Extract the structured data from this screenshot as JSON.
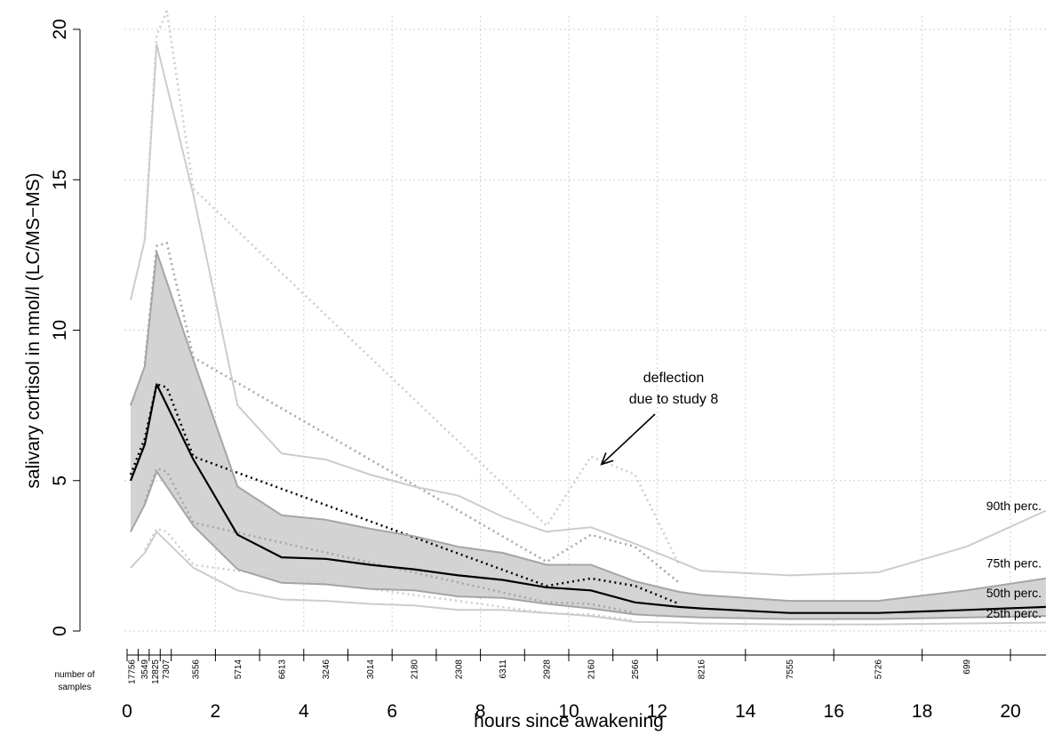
{
  "chart_data": {
    "type": "line",
    "xlabel": "hours since awakening",
    "ylabel": "salivary cortisol in nmol/l (LC/MS−MS)",
    "xlim": [
      0,
      20.8
    ],
    "ylim": [
      0,
      20
    ],
    "x_ticks": [
      0,
      2,
      4,
      6,
      8,
      10,
      12,
      14,
      16,
      18,
      20
    ],
    "y_ticks": [
      0,
      5,
      10,
      15,
      20
    ],
    "grid": true,
    "band": {
      "lower": "25th perc.",
      "upper": "75th perc.",
      "color": "#d3d3d3"
    },
    "series": [
      {
        "name": "90th perc.",
        "style": "solid",
        "color": "#cccccc",
        "x": [
          0.08,
          0.4,
          0.67,
          1.5,
          2.5,
          3.5,
          4.5,
          5.5,
          6.5,
          7.5,
          8.5,
          9.5,
          10.5,
          11.5,
          12.5,
          13,
          15,
          17,
          19,
          20.8
        ],
        "y": [
          11,
          13,
          19.5,
          14.5,
          7.5,
          5.9,
          5.7,
          5.2,
          4.8,
          4.5,
          3.8,
          3.3,
          3.45,
          2.9,
          2.3,
          2.0,
          1.85,
          1.95,
          2.8,
          4.0
        ]
      },
      {
        "name": "75th perc.",
        "style": "solid",
        "color": "#a5a5a5",
        "x": [
          0.08,
          0.4,
          0.67,
          1.5,
          2.5,
          3.5,
          4.5,
          5.5,
          6.5,
          7.5,
          8.5,
          9.5,
          10.5,
          11.5,
          12.5,
          13,
          15,
          17,
          19,
          20.8
        ],
        "y": [
          7.5,
          8.8,
          12.6,
          9.0,
          4.8,
          3.85,
          3.7,
          3.4,
          3.15,
          2.8,
          2.6,
          2.2,
          2.2,
          1.65,
          1.3,
          1.2,
          1.0,
          1.0,
          1.35,
          1.75
        ]
      },
      {
        "name": "50th perc.",
        "style": "solid",
        "color": "#000000",
        "x": [
          0.08,
          0.4,
          0.67,
          1.5,
          2.5,
          3.5,
          4.5,
          5.5,
          6.5,
          7.5,
          8.5,
          9.5,
          10.5,
          11.5,
          12.5,
          13,
          15,
          17,
          19,
          20.8
        ],
        "y": [
          5.0,
          6.2,
          8.2,
          5.7,
          3.2,
          2.45,
          2.4,
          2.2,
          2.05,
          1.85,
          1.7,
          1.45,
          1.35,
          0.95,
          0.8,
          0.75,
          0.6,
          0.6,
          0.7,
          0.8
        ]
      },
      {
        "name": "25th perc.",
        "style": "solid",
        "color": "#a5a5a5",
        "x": [
          0.08,
          0.4,
          0.67,
          1.5,
          2.5,
          3.5,
          4.5,
          5.5,
          6.5,
          7.5,
          8.5,
          9.5,
          10.5,
          11.5,
          12.5,
          13,
          15,
          17,
          19,
          20.8
        ],
        "y": [
          3.3,
          4.2,
          5.3,
          3.5,
          2.05,
          1.6,
          1.55,
          1.4,
          1.35,
          1.15,
          1.1,
          0.9,
          0.75,
          0.55,
          0.48,
          0.45,
          0.4,
          0.4,
          0.45,
          0.5
        ]
      },
      {
        "name": "10th perc.",
        "style": "solid",
        "color": "#cccccc",
        "x": [
          0.08,
          0.4,
          0.67,
          1.5,
          2.5,
          3.5,
          4.5,
          5.5,
          6.5,
          7.5,
          8.5,
          9.5,
          10.5,
          11.5,
          12.5,
          13,
          15,
          17,
          19,
          20.8
        ],
        "y": [
          2.1,
          2.6,
          3.3,
          2.1,
          1.35,
          1.05,
          1.0,
          0.9,
          0.85,
          0.7,
          0.7,
          0.6,
          0.5,
          0.3,
          0.28,
          0.25,
          0.22,
          0.22,
          0.25,
          0.28
        ]
      },
      {
        "name": "90th perc. dotted",
        "style": "dotted",
        "color": "#cccccc",
        "x": [
          0.4,
          0.67,
          0.9,
          1.5,
          9.5,
          10.5,
          11.5,
          12.5
        ],
        "y": [
          13,
          19.8,
          20.6,
          14.7,
          3.5,
          5.8,
          5.2,
          2.2
        ]
      },
      {
        "name": "75th perc. dotted",
        "style": "dotted",
        "color": "#a5a5a5",
        "x": [
          0.4,
          0.67,
          0.9,
          1.5,
          9.5,
          10.5,
          11.5,
          12.5
        ],
        "y": [
          8.9,
          12.8,
          12.9,
          9.1,
          2.3,
          3.2,
          2.8,
          1.6
        ]
      },
      {
        "name": "50th perc. dotted",
        "style": "dotted",
        "color": "#000000",
        "x": [
          0.08,
          0.4,
          0.67,
          0.9,
          1.5,
          9.5,
          10.5,
          11.5,
          12.5
        ],
        "y": [
          5.2,
          6.4,
          8.2,
          8.1,
          5.8,
          1.5,
          1.75,
          1.5,
          0.9
        ]
      },
      {
        "name": "25th perc. dotted",
        "style": "dotted",
        "color": "#a5a5a5",
        "x": [
          0.4,
          0.67,
          0.9,
          1.5,
          9.5,
          10.5,
          11.5
        ],
        "y": [
          4.3,
          5.4,
          5.3,
          3.6,
          0.95,
          0.9,
          0.6
        ]
      },
      {
        "name": "10th perc. dotted",
        "style": "dotted",
        "color": "#cccccc",
        "x": [
          0.4,
          0.67,
          0.9,
          1.5,
          9.5,
          10.5,
          11.5
        ],
        "y": [
          2.7,
          3.4,
          3.3,
          2.2,
          0.6,
          0.55,
          0.35
        ]
      }
    ],
    "percentile_labels": [
      {
        "text": "90th perc.",
        "y": 3.9
      },
      {
        "text": "75th perc.",
        "y": 2.0
      },
      {
        "text": "50th perc.",
        "y": 1.0
      },
      {
        "text": "25th perc.",
        "y": 0.33
      }
    ],
    "annotation": {
      "lines": [
        "deflection",
        "due to study 8"
      ],
      "arrow_to": {
        "x": 10.7,
        "y": 5.6
      }
    },
    "samples": {
      "label_lines": [
        "number of",
        "samples"
      ],
      "groups": [
        {
          "x": 0.1,
          "n": "17756"
        },
        {
          "x": 0.39,
          "n": "3549"
        },
        {
          "x": 0.63,
          "n": "12825"
        },
        {
          "x": 0.88,
          "n": "7307"
        },
        {
          "x": 1.55,
          "n": "3556"
        },
        {
          "x": 2.5,
          "n": "5714"
        },
        {
          "x": 3.5,
          "n": "6613"
        },
        {
          "x": 4.5,
          "n": "3246"
        },
        {
          "x": 5.5,
          "n": "3014"
        },
        {
          "x": 6.5,
          "n": "2180"
        },
        {
          "x": 7.5,
          "n": "2308"
        },
        {
          "x": 8.5,
          "n": "6311"
        },
        {
          "x": 9.5,
          "n": "2928"
        },
        {
          "x": 10.5,
          "n": "2160"
        },
        {
          "x": 11.5,
          "n": "2566"
        },
        {
          "x": 13.0,
          "n": "8216"
        },
        {
          "x": 15.0,
          "n": "7555"
        },
        {
          "x": 17.0,
          "n": "5726"
        },
        {
          "x": 19.0,
          "n": "699"
        }
      ],
      "boundaries": [
        0,
        0.25,
        0.5,
        0.75,
        1,
        2,
        3,
        4,
        5,
        6,
        7,
        8,
        9,
        10,
        11,
        12,
        14,
        16,
        18,
        20
      ]
    }
  }
}
